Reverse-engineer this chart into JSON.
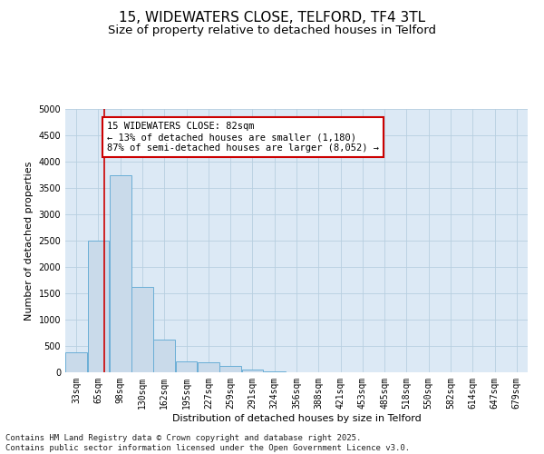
{
  "title_line1": "15, WIDEWATERS CLOSE, TELFORD, TF4 3TL",
  "title_line2": "Size of property relative to detached houses in Telford",
  "xlabel": "Distribution of detached houses by size in Telford",
  "ylabel": "Number of detached properties",
  "categories": [
    "33sqm",
    "65sqm",
    "98sqm",
    "130sqm",
    "162sqm",
    "195sqm",
    "227sqm",
    "259sqm",
    "291sqm",
    "324sqm",
    "356sqm",
    "388sqm",
    "421sqm",
    "453sqm",
    "485sqm",
    "518sqm",
    "550sqm",
    "582sqm",
    "614sqm",
    "647sqm",
    "679sqm"
  ],
  "values": [
    380,
    2500,
    3750,
    1620,
    620,
    210,
    185,
    115,
    60,
    10,
    0,
    0,
    0,
    0,
    0,
    0,
    0,
    0,
    0,
    0,
    0
  ],
  "bar_color": "#c9daea",
  "bar_edge_color": "#6aaed6",
  "bar_linewidth": 0.7,
  "vline_x_index": 1.25,
  "vline_color": "#cc0000",
  "vline_linewidth": 1.2,
  "annotation_text": "15 WIDEWATERS CLOSE: 82sqm\n← 13% of detached houses are smaller (1,180)\n87% of semi-detached houses are larger (8,052) →",
  "annotation_box_color": "#ffffff",
  "annotation_box_edge_color": "#cc0000",
  "ylim": [
    0,
    5000
  ],
  "yticks": [
    0,
    500,
    1000,
    1500,
    2000,
    2500,
    3000,
    3500,
    4000,
    4500,
    5000
  ],
  "plot_bg_color": "#dce9f5",
  "background_color": "#ffffff",
  "grid_color": "#b8cfe0",
  "footer_line1": "Contains HM Land Registry data © Crown copyright and database right 2025.",
  "footer_line2": "Contains public sector information licensed under the Open Government Licence v3.0.",
  "title_fontsize": 11,
  "subtitle_fontsize": 9.5,
  "axis_label_fontsize": 8,
  "tick_fontsize": 7,
  "annotation_fontsize": 7.5,
  "footer_fontsize": 6.5
}
